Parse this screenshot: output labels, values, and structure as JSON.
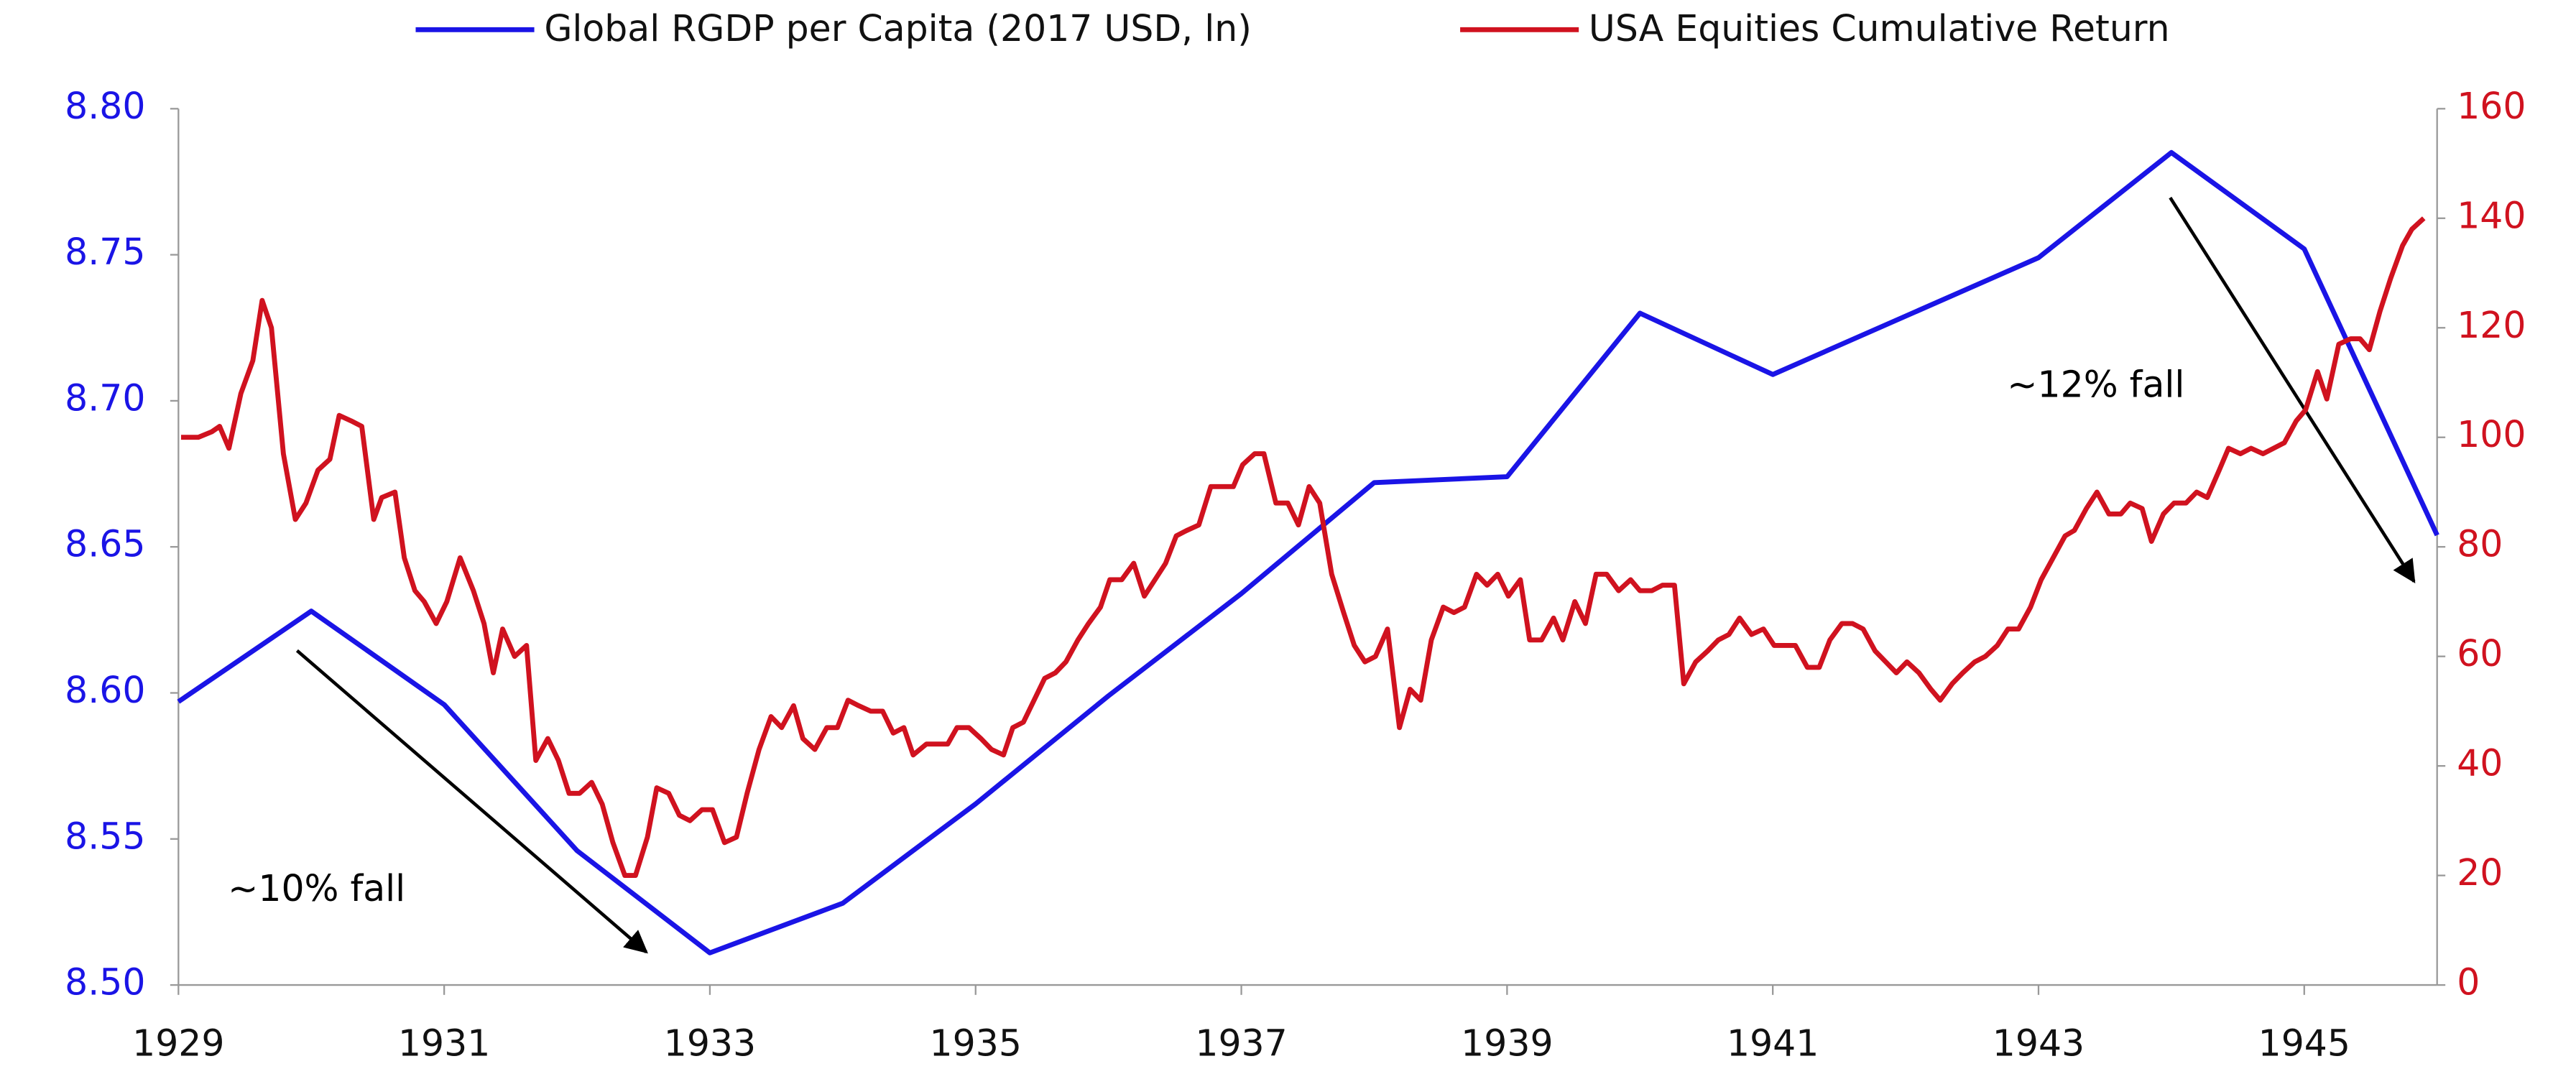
{
  "chart_data": {
    "type": "line",
    "xlim": [
      1929,
      1946
    ],
    "xticks": [
      1929,
      1931,
      1933,
      1935,
      1937,
      1939,
      1941,
      1943,
      1945
    ],
    "ylim": [
      8.5,
      8.8
    ],
    "yticks": [
      {
        "value": 8.5,
        "label": "8.50"
      },
      {
        "value": 8.55,
        "label": "8.55"
      },
      {
        "value": 8.6,
        "label": "8.60"
      },
      {
        "value": 8.65,
        "label": "8.65"
      },
      {
        "value": 8.7,
        "label": "8.70"
      },
      {
        "value": 8.75,
        "label": "8.75"
      },
      {
        "value": 8.8,
        "label": "8.80"
      }
    ],
    "y2lim": [
      0,
      160
    ],
    "y2ticks": [
      0,
      20,
      40,
      60,
      80,
      100,
      120,
      140,
      160
    ],
    "grid": false,
    "legend": "top",
    "annotations": [
      "~10% fall",
      "~12% fall"
    ],
    "series": [
      {
        "name": "Global RGDP per Capita (2017 USD, ln)",
        "color": "#1a14e6",
        "axis": "y",
        "x": [
          1929,
          1930,
          1931,
          1932,
          1933,
          1934,
          1935,
          1936,
          1937,
          1938,
          1939,
          1940,
          1941,
          1942,
          1943,
          1944,
          1945,
          1946
        ],
        "values": [
          8.597,
          8.628,
          8.596,
          8.546,
          8.511,
          8.528,
          8.562,
          8.599,
          8.634,
          8.672,
          8.674,
          8.73,
          8.709,
          8.729,
          8.749,
          8.785,
          8.752,
          8.654
        ]
      },
      {
        "name": "USA Equities Cumulative Return",
        "color": "#d0121f",
        "axis": "y2",
        "x": [
          1929.02,
          1929.15,
          1929.25,
          1929.31,
          1929.38,
          1929.47,
          1929.56,
          1929.63,
          1929.7,
          1929.79,
          1929.88,
          1929.96,
          1930.05,
          1930.14,
          1930.21,
          1930.3,
          1930.38,
          1930.47,
          1930.53,
          1930.63,
          1930.7,
          1930.78,
          1930.85,
          1930.94,
          1931.02,
          1931.12,
          1931.22,
          1931.3,
          1931.37,
          1931.44,
          1931.53,
          1931.62,
          1931.69,
          1931.78,
          1931.86,
          1931.94,
          1932.02,
          1932.11,
          1932.19,
          1932.27,
          1932.36,
          1932.44,
          1932.53,
          1932.6,
          1932.69,
          1932.77,
          1932.85,
          1932.94,
          1933.02,
          1933.11,
          1933.2,
          1933.28,
          1933.37,
          1933.46,
          1933.54,
          1933.63,
          1933.7,
          1933.79,
          1933.88,
          1933.96,
          1934.04,
          1934.12,
          1934.21,
          1934.3,
          1934.38,
          1934.46,
          1934.53,
          1934.63,
          1934.72,
          1934.79,
          1934.86,
          1934.95,
          1935.04,
          1935.12,
          1935.21,
          1935.28,
          1935.36,
          1935.44,
          1935.52,
          1935.6,
          1935.68,
          1935.77,
          1935.85,
          1935.94,
          1936.01,
          1936.1,
          1936.19,
          1936.27,
          1936.35,
          1936.43,
          1936.51,
          1936.59,
          1936.68,
          1936.77,
          1936.85,
          1936.94,
          1937.01,
          1937.1,
          1937.17,
          1937.26,
          1937.35,
          1937.43,
          1937.51,
          1937.59,
          1937.68,
          1937.77,
          1937.85,
          1937.93,
          1938.01,
          1938.1,
          1938.19,
          1938.27,
          1938.35,
          1938.43,
          1938.52,
          1938.6,
          1938.68,
          1938.77,
          1938.85,
          1938.93,
          1939.01,
          1939.1,
          1939.17,
          1939.26,
          1939.35,
          1939.42,
          1939.51,
          1939.59,
          1939.67,
          1939.75,
          1939.84,
          1939.93,
          1940,
          1940.09,
          1940.17,
          1940.26,
          1940.33,
          1940.42,
          1940.51,
          1940.59,
          1940.67,
          1940.75,
          1940.84,
          1940.93,
          1941.01,
          1941.1,
          1941.17,
          1941.26,
          1941.35,
          1941.43,
          1941.52,
          1941.6,
          1941.68,
          1941.77,
          1941.85,
          1941.93,
          1942.01,
          1942.1,
          1942.19,
          1942.26,
          1942.35,
          1942.43,
          1942.52,
          1942.6,
          1942.69,
          1942.77,
          1942.85,
          1942.94,
          1943.02,
          1943.11,
          1943.2,
          1943.27,
          1943.36,
          1943.44,
          1943.53,
          1943.62,
          1943.69,
          1943.78,
          1943.85,
          1943.94,
          1944.02,
          1944.11,
          1944.19,
          1944.27,
          1944.36,
          1944.43,
          1944.52,
          1944.6,
          1944.69,
          1944.77,
          1944.85,
          1944.94,
          1945.01,
          1945.1,
          1945.17,
          1945.26,
          1945.35,
          1945.42,
          1945.49,
          1945.57,
          1945.65,
          1945.74,
          1945.81,
          1945.9
        ],
        "values": [
          100,
          100,
          101,
          102,
          98,
          108,
          114,
          125,
          120,
          97,
          85,
          88,
          94,
          96,
          104,
          103,
          102,
          85,
          89,
          90,
          78,
          72,
          70,
          66,
          70,
          78,
          72,
          66,
          57,
          65,
          60,
          62,
          41,
          45,
          41,
          35,
          35,
          37,
          33,
          26,
          20,
          20,
          27,
          36,
          35,
          31,
          30,
          32,
          32,
          26,
          27,
          35,
          43,
          49,
          47,
          51,
          45,
          43,
          47,
          47,
          52,
          51,
          50,
          50,
          46,
          47,
          42,
          44,
          44,
          44,
          47,
          47,
          45,
          43,
          42,
          47,
          48,
          52,
          56,
          57,
          59,
          63,
          66,
          69,
          74,
          74,
          77,
          71,
          74,
          77,
          82,
          83,
          84,
          91,
          91,
          91,
          95,
          97,
          97,
          88,
          88,
          84,
          91,
          88,
          75,
          68,
          62,
          59,
          60,
          65,
          47,
          54,
          52,
          63,
          69,
          68,
          69,
          75,
          73,
          75,
          71,
          74,
          63,
          63,
          67,
          63,
          70,
          66,
          75,
          75,
          72,
          74,
          72,
          72,
          73,
          73,
          55,
          59,
          61,
          63,
          64,
          67,
          64,
          65,
          62,
          62,
          62,
          58,
          58,
          63,
          66,
          66,
          65,
          61,
          59,
          57,
          59,
          57,
          54,
          52,
          55,
          57,
          59,
          60,
          62,
          65,
          65,
          69,
          74,
          78,
          82,
          83,
          87,
          90,
          86,
          86,
          88,
          87,
          81,
          86,
          88,
          88,
          90,
          89,
          94,
          98,
          97,
          98,
          97,
          98,
          99,
          103,
          105,
          112,
          107,
          117,
          118,
          118,
          116,
          123,
          129,
          135,
          138,
          140
        ]
      }
    ]
  }
}
